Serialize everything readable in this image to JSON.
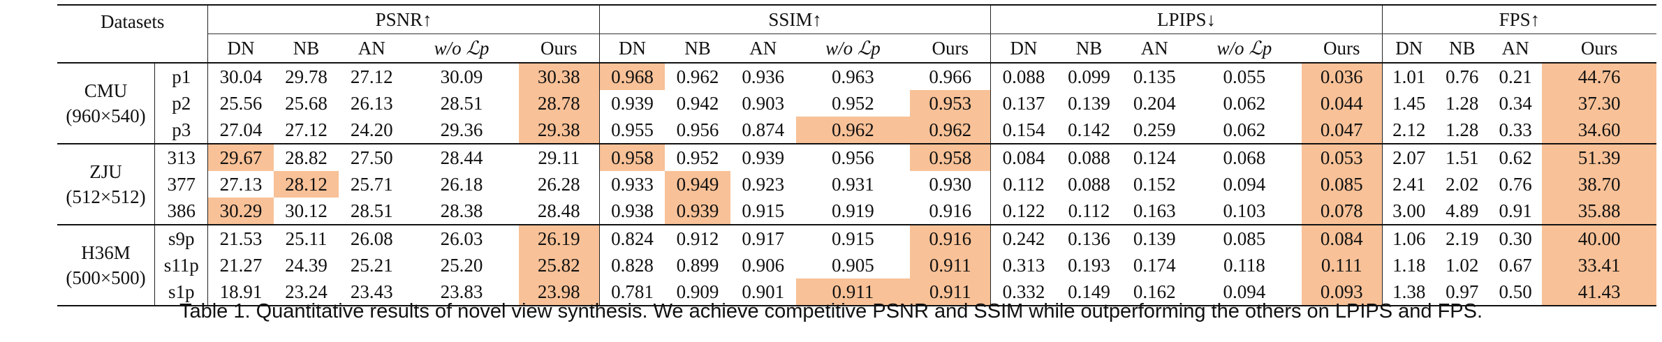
{
  "header": {
    "datasets_label": "Datasets",
    "groups": [
      {
        "label": "PSNR↑",
        "cols": [
          "DN",
          "NB",
          "AN",
          "w/o ℒp",
          "Ours"
        ]
      },
      {
        "label": "SSIM↑",
        "cols": [
          "DN",
          "NB",
          "AN",
          "w/o ℒp",
          "Ours"
        ]
      },
      {
        "label": "LPIPS↓",
        "cols": [
          "DN",
          "NB",
          "AN",
          "w/o ℒp",
          "Ours"
        ]
      },
      {
        "label": "FPS↑",
        "cols": [
          "DN",
          "NB",
          "AN",
          "Ours"
        ]
      }
    ]
  },
  "highlight_color": "#f8c197",
  "sections": [
    {
      "name": "CMU",
      "res": "(960×540)",
      "rows": [
        {
          "id": "p1",
          "cells": [
            "30.04",
            "29.78",
            "27.12",
            "30.09",
            "30.38",
            "0.968",
            "0.962",
            "0.936",
            "0.963",
            "0.966",
            "0.088",
            "0.099",
            "0.135",
            "0.055",
            "0.036",
            "1.01",
            "0.76",
            "0.21",
            "44.76"
          ],
          "hl": [
            4,
            5,
            14,
            18
          ]
        },
        {
          "id": "p2",
          "cells": [
            "25.56",
            "25.68",
            "26.13",
            "28.51",
            "28.78",
            "0.939",
            "0.942",
            "0.903",
            "0.952",
            "0.953",
            "0.137",
            "0.139",
            "0.204",
            "0.062",
            "0.044",
            "1.45",
            "1.28",
            "0.34",
            "37.30"
          ],
          "hl": [
            4,
            9,
            14,
            18
          ]
        },
        {
          "id": "p3",
          "cells": [
            "27.04",
            "27.12",
            "24.20",
            "29.36",
            "29.38",
            "0.955",
            "0.956",
            "0.874",
            "0.962",
            "0.962",
            "0.154",
            "0.142",
            "0.259",
            "0.062",
            "0.047",
            "2.12",
            "1.28",
            "0.33",
            "34.60"
          ],
          "hl": [
            4,
            8,
            9,
            14,
            18
          ]
        }
      ]
    },
    {
      "name": "ZJU",
      "res": "(512×512)",
      "rows": [
        {
          "id": "313",
          "cells": [
            "29.67",
            "28.82",
            "27.50",
            "28.44",
            "29.11",
            "0.958",
            "0.952",
            "0.939",
            "0.956",
            "0.958",
            "0.084",
            "0.088",
            "0.124",
            "0.068",
            "0.053",
            "2.07",
            "1.51",
            "0.62",
            "51.39"
          ],
          "hl": [
            0,
            5,
            9,
            14,
            18
          ]
        },
        {
          "id": "377",
          "cells": [
            "27.13",
            "28.12",
            "25.71",
            "26.18",
            "26.28",
            "0.933",
            "0.949",
            "0.923",
            "0.931",
            "0.930",
            "0.112",
            "0.088",
            "0.152",
            "0.094",
            "0.085",
            "2.41",
            "2.02",
            "0.76",
            "38.70"
          ],
          "hl": [
            1,
            6,
            14,
            18
          ]
        },
        {
          "id": "386",
          "cells": [
            "30.29",
            "30.12",
            "28.51",
            "28.38",
            "28.48",
            "0.938",
            "0.939",
            "0.915",
            "0.919",
            "0.916",
            "0.122",
            "0.112",
            "0.163",
            "0.103",
            "0.078",
            "3.00",
            "4.89",
            "0.91",
            "35.88"
          ],
          "hl": [
            0,
            6,
            14,
            18
          ]
        }
      ]
    },
    {
      "name": "H36M",
      "res": "(500×500)",
      "rows": [
        {
          "id": "s9p",
          "cells": [
            "21.53",
            "25.11",
            "26.08",
            "26.03",
            "26.19",
            "0.824",
            "0.912",
            "0.917",
            "0.915",
            "0.916",
            "0.242",
            "0.136",
            "0.139",
            "0.085",
            "0.084",
            "1.06",
            "2.19",
            "0.30",
            "40.00"
          ],
          "hl": [
            4,
            9,
            14,
            18
          ]
        },
        {
          "id": "s11p",
          "cells": [
            "21.27",
            "24.39",
            "25.21",
            "25.20",
            "25.82",
            "0.828",
            "0.899",
            "0.906",
            "0.905",
            "0.911",
            "0.313",
            "0.193",
            "0.174",
            "0.118",
            "0.111",
            "1.18",
            "1.02",
            "0.67",
            "33.41"
          ],
          "hl": [
            4,
            9,
            14,
            18
          ]
        },
        {
          "id": "s1p",
          "cells": [
            "18.91",
            "23.24",
            "23.43",
            "23.83",
            "23.98",
            "0.781",
            "0.909",
            "0.901",
            "0.911",
            "0.911",
            "0.332",
            "0.149",
            "0.162",
            "0.094",
            "0.093",
            "1.38",
            "0.97",
            "0.50",
            "41.43"
          ],
          "hl": [
            4,
            8,
            9,
            14,
            18
          ]
        }
      ]
    }
  ],
  "caption": "Table 1.  Quantitative results of novel view synthesis. We achieve competitive PSNR and SSIM while outperforming the others on LPIPS and FPS."
}
